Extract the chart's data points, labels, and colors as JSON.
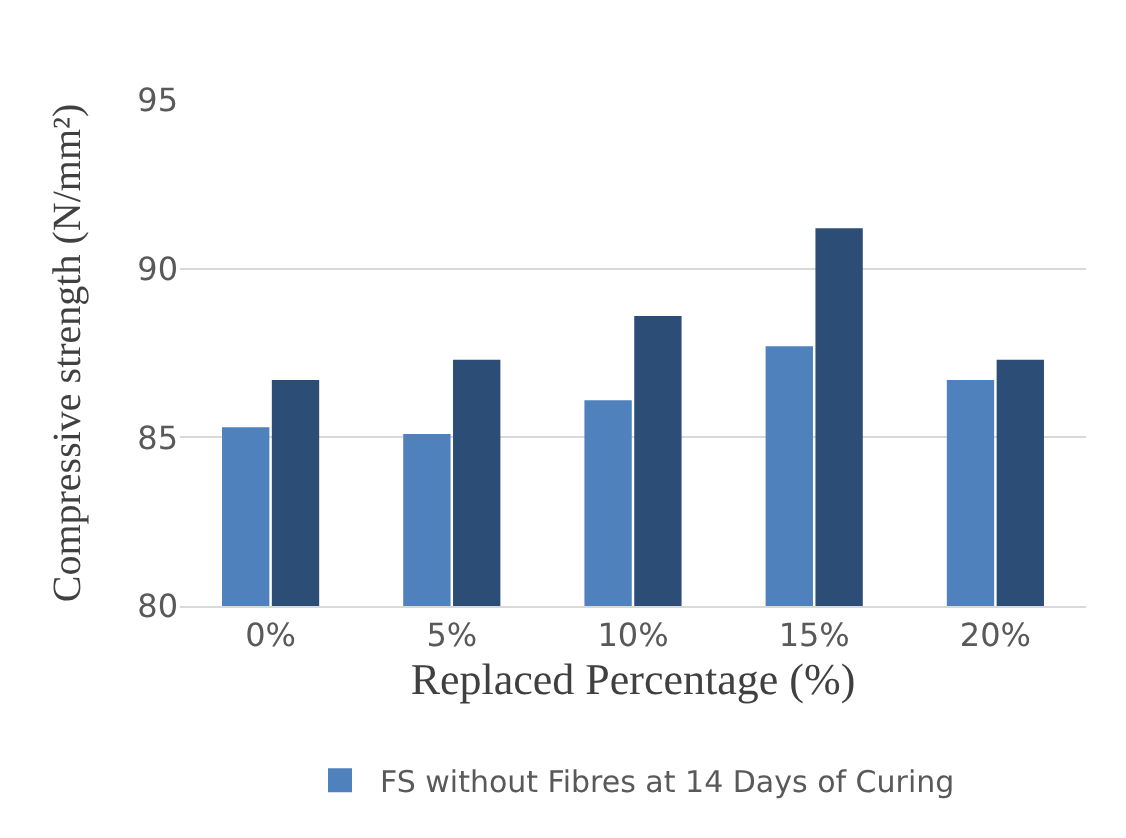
{
  "chart_data": {
    "type": "bar",
    "xlabel": "Replaced Percentage (%)",
    "ylabel": "Compressive strength (N/mm²)",
    "categories": [
      "0%",
      "5%",
      "10%",
      "15%",
      "20%"
    ],
    "series": [
      {
        "name": "FS without Fibres at 14 Days of Curing",
        "color": "#4f81bd",
        "values": [
          85.3,
          85.1,
          86.1,
          87.7,
          86.7
        ]
      },
      {
        "color": "#2c4d75",
        "values": [
          86.7,
          87.3,
          88.6,
          91.2,
          87.3
        ]
      }
    ],
    "ylim": [
      80,
      95
    ],
    "yticks": [
      80,
      85,
      90,
      95
    ],
    "grid": "y",
    "legend": "bottom"
  }
}
